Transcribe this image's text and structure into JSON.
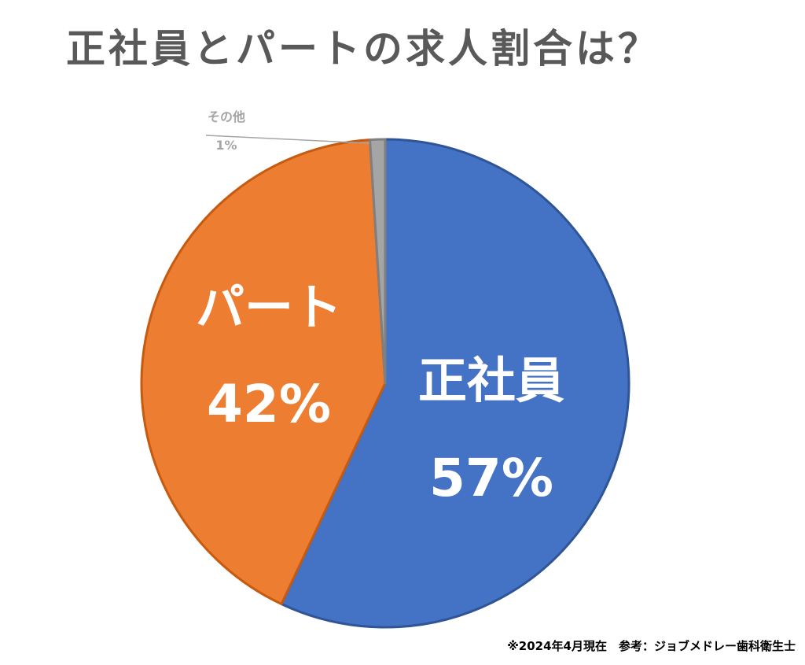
{
  "chart_data": {
    "type": "pie",
    "title": "正社員とパートの求人割合は？",
    "slices": [
      {
        "label": "正社員",
        "value": 57,
        "value_label": "57%",
        "color": "#4472C4",
        "stroke": "#2F5597"
      },
      {
        "label": "パート",
        "value": 42,
        "value_label": "42%",
        "color": "#ED7D31",
        "stroke": "#C55A11"
      },
      {
        "label": "その他",
        "value": 1,
        "value_label": "1%",
        "color": "#A5A5A5",
        "stroke": "#7F7F7F"
      }
    ],
    "start_angle_deg": 0,
    "direction": "clockwise",
    "label_color": "#FFFFFF",
    "small_label_color": "#A5A5A5"
  },
  "footnote": "※2024年4月現在　参考：ジョブメドレー歯科衛生士"
}
